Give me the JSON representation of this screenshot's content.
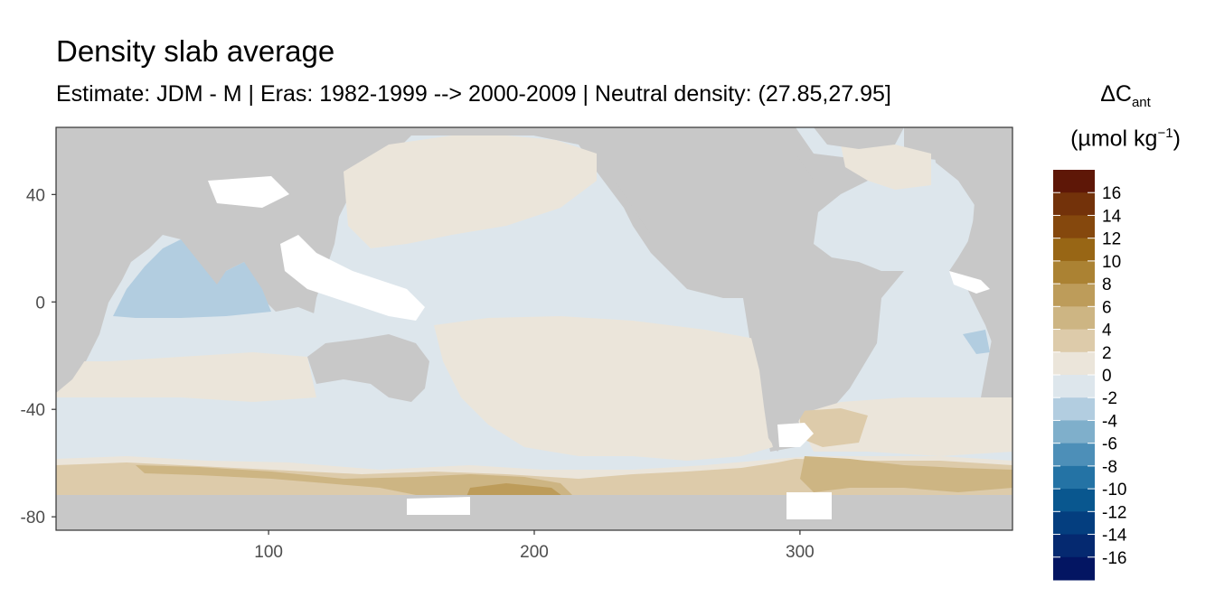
{
  "chart_data": {
    "type": "heatmap",
    "title": "Density slab average",
    "subtitle": "Estimate: JDM - M | Eras: 1982-1999 --> 2000-2009 | Neutral density: (27.85,27.95]",
    "legend": {
      "title_symbol": "ΔC",
      "title_subscript": "ant",
      "unit_prefix": "(µmol kg",
      "unit_superscript": "−1",
      "unit_suffix": ")",
      "placement": "right",
      "bins": [
        {
          "color": "#5e1707"
        },
        {
          "color": "#73320a"
        },
        {
          "color": "#85480d"
        },
        {
          "color": "#986615"
        },
        {
          "color": "#ab8233"
        },
        {
          "color": "#bd9c5a"
        },
        {
          "color": "#cdb583"
        },
        {
          "color": "#ddcbaa"
        },
        {
          "color": "#ebe5da"
        },
        {
          "color": "#dde6ec"
        },
        {
          "color": "#b2cde0"
        },
        {
          "color": "#7fafcb"
        },
        {
          "color": "#4d8fb8"
        },
        {
          "color": "#2473a5"
        },
        {
          "color": "#09578f"
        },
        {
          "color": "#043e7f"
        },
        {
          "color": "#052970"
        },
        {
          "color": "#031562"
        }
      ],
      "labels": [
        "16",
        "14",
        "12",
        "10",
        "8",
        "6",
        "4",
        "2",
        "0",
        "-2",
        "-4",
        "-6",
        "-8",
        "-10",
        "-12",
        "-14",
        "-16"
      ]
    },
    "x_axis": {
      "ticks": [
        100,
        200,
        300
      ],
      "labels": [
        "100",
        "200",
        "300"
      ],
      "range": [
        20,
        380
      ]
    },
    "y_axis": {
      "ticks": [
        40,
        0,
        -40,
        -80
      ],
      "labels": [
        "40",
        "0",
        "-40",
        "-80"
      ],
      "range": [
        -85,
        65
      ]
    },
    "grid": false,
    "land_color": "#c8c8c8",
    "nodata_color": "#ffffff"
  }
}
